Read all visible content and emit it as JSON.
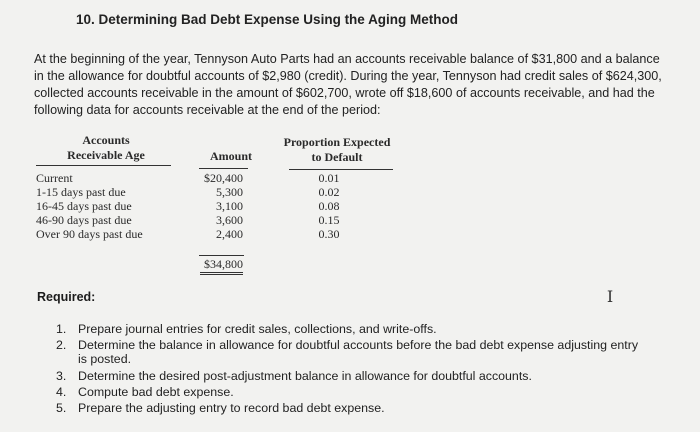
{
  "title": "10. Determining Bad Debt Expense Using the Aging Method",
  "intro": "At the beginning of the year, Tennyson Auto Parts had an accounts receivable balance of $31,800 and a balance in the allowance for doubtful accounts of $2,980 (credit). During the year, Tennyson had credit sales of $624,300, collected accounts receivable in the amount of $602,700, wrote off $18,600 of accounts receivable, and had the following data for accounts receivable at the end of the period:",
  "table": {
    "header_age_line1": "Accounts",
    "header_age_line2": "Receivable Age",
    "header_amount": "Amount",
    "header_prop_line1": "Proportion Expected",
    "header_prop_line2": "to Default",
    "rows": [
      {
        "age": "Current",
        "amount": "$20,400",
        "proportion": "0.01"
      },
      {
        "age": "1-15 days past due",
        "amount": "5,300",
        "proportion": "0.02"
      },
      {
        "age": "16-45 days past due",
        "amount": "3,100",
        "proportion": "0.08"
      },
      {
        "age": "46-90 days past due",
        "amount": "3,600",
        "proportion": "0.15"
      },
      {
        "age": "Over 90 days past due",
        "amount": "2,400",
        "proportion": "0.30"
      }
    ],
    "total": "$34,800"
  },
  "required_label": "Required:",
  "cursor_glyph": "I",
  "requirements": [
    {
      "num": "1.",
      "text": "Prepare journal entries for credit sales, collections, and write-offs."
    },
    {
      "num": "2.",
      "text": "Determine the balance in allowance for doubtful accounts before the bad debt expense adjusting entry",
      "cont": "is posted."
    },
    {
      "num": "3.",
      "text": "Determine the desired post-adjustment balance in allowance for doubtful accounts."
    },
    {
      "num": "4.",
      "text": "Compute bad debt expense."
    },
    {
      "num": "5.",
      "text": "Prepare the adjusting entry to record bad debt expense."
    }
  ]
}
